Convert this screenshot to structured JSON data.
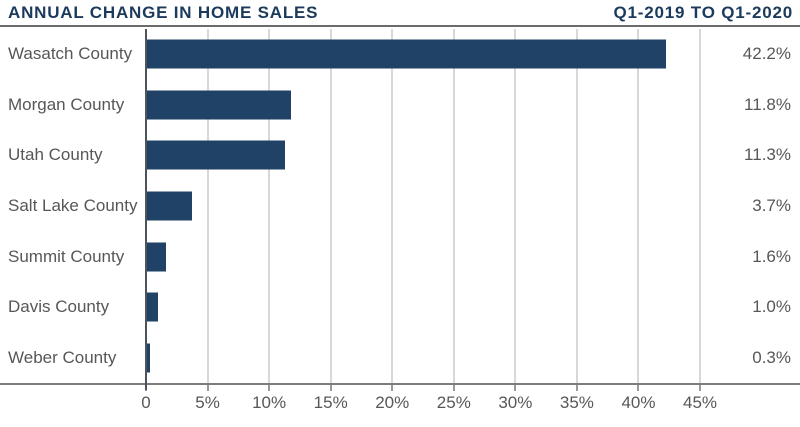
{
  "header": {
    "title": "ANNUAL CHANGE IN HOME SALES",
    "period": "Q1-2019 TO Q1-2020"
  },
  "chart_data": {
    "type": "bar",
    "orientation": "horizontal",
    "title": "ANNUAL CHANGE IN HOME SALES",
    "subtitle": "Q1-2019 TO Q1-2020",
    "categories": [
      "Wasatch County",
      "Morgan County",
      "Utah County",
      "Salt Lake County",
      "Summit County",
      "Davis County",
      "Weber County"
    ],
    "values": [
      42.2,
      11.8,
      11.3,
      3.7,
      1.6,
      1.0,
      0.3
    ],
    "value_labels": [
      "42.2%",
      "11.8%",
      "11.3%",
      "3.7%",
      "1.6%",
      "1.0%",
      "0.3%"
    ],
    "x_tick_values": [
      0,
      5,
      10,
      15,
      20,
      25,
      30,
      35,
      40,
      45
    ],
    "x_tick_labels": [
      "0",
      "5%",
      "10%",
      "15%",
      "20%",
      "25%",
      "30%",
      "35%",
      "40%",
      "45%"
    ],
    "xlim": [
      0,
      53
    ],
    "grid": true,
    "legend": "none",
    "colors": {
      "bar": "#1f4266",
      "title": "#1b3a5c",
      "labels": "#565759",
      "gridline": "#d8d8d8",
      "zero_axis": "#4d545c",
      "bottom_axis": "#7d7d7d"
    }
  }
}
